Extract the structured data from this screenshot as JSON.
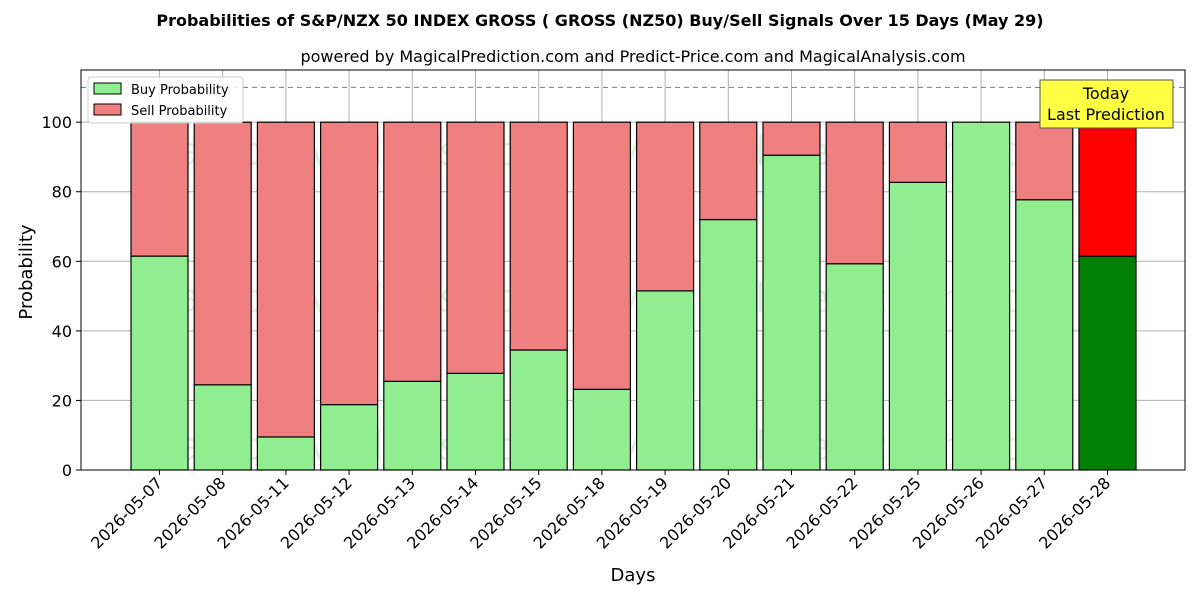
{
  "chart_data": {
    "type": "bar",
    "stacked": true,
    "title": "Probabilities of S&P/NZX 50 INDEX GROSS ( GROSS  (NZ50) Buy/Sell Signals Over 15 Days (May 29)",
    "subtitle": "powered by MagicalPrediction.com and Predict-Price.com and MagicalAnalysis.com",
    "xlabel": "Days",
    "ylabel": "Probability",
    "ylim": [
      0,
      115
    ],
    "yticks": [
      0,
      20,
      40,
      60,
      80,
      100
    ],
    "grid": true,
    "legend_position": "top-left",
    "reference_line": 110,
    "categories": [
      "2026-05-07",
      "2026-05-08",
      "2026-05-11",
      "2026-05-12",
      "2026-05-13",
      "2026-05-14",
      "2026-05-15",
      "2026-05-18",
      "2026-05-19",
      "2026-05-20",
      "2026-05-21",
      "2026-05-22",
      "2026-05-25",
      "2026-05-26",
      "2026-05-27",
      "2026-05-28"
    ],
    "series": [
      {
        "name": "Buy Probability",
        "color": "#90ee90",
        "highlight_color": "#008000",
        "values": [
          61.5,
          24.5,
          9.5,
          18.8,
          25.5,
          27.8,
          34.5,
          23.2,
          51.5,
          72.0,
          90.5,
          59.3,
          82.7,
          100.0,
          77.7,
          61.5
        ]
      },
      {
        "name": "Sell Probability",
        "color": "#f08080",
        "highlight_color": "#ff0000",
        "values": [
          38.5,
          75.5,
          90.5,
          81.2,
          74.5,
          72.2,
          65.5,
          76.8,
          48.5,
          28.0,
          9.5,
          40.7,
          17.3,
          0.0,
          22.3,
          38.5
        ]
      }
    ],
    "highlight_index": 15,
    "annotation": {
      "lines": [
        "Today",
        "Last Prediction"
      ],
      "background": "#ffff44"
    },
    "watermarks": [
      "MagicalAnalysis.com",
      "MagicalPrediction.com"
    ]
  }
}
